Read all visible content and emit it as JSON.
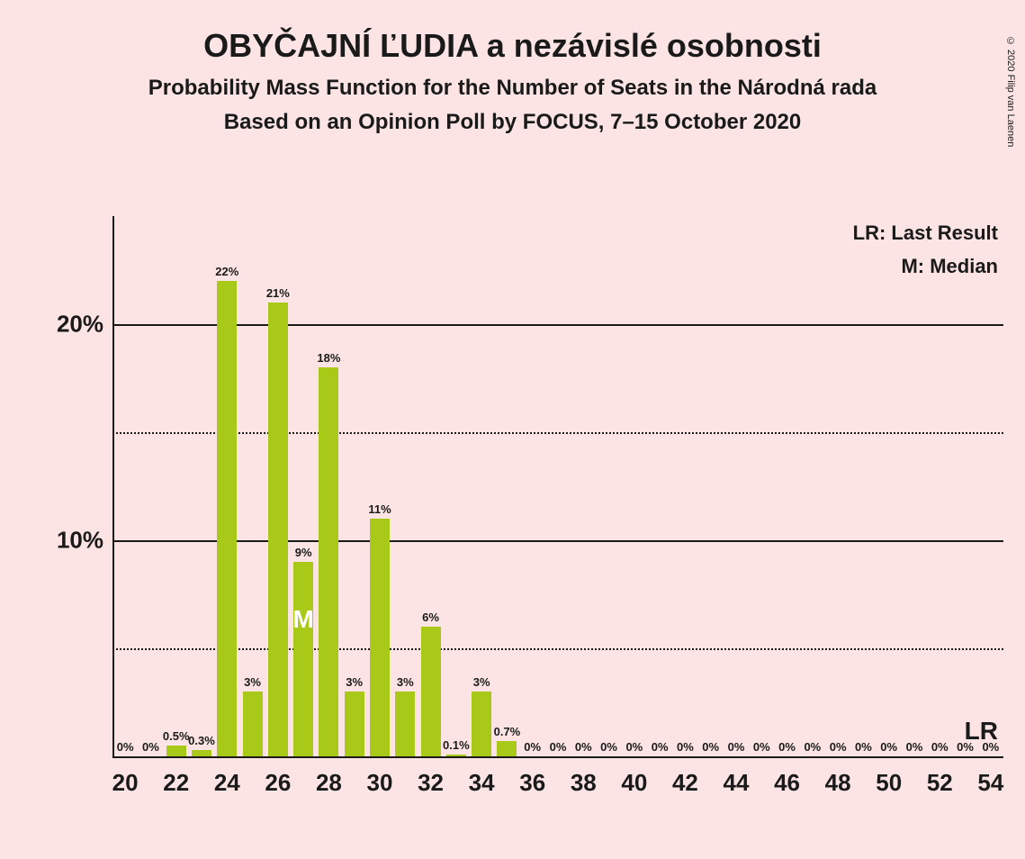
{
  "title": "OBYČAJNÍ ĽUDIA a nezávislé osobnosti",
  "subtitle1": "Probability Mass Function for the Number of Seats in the Národná rada",
  "subtitle2": "Based on an Opinion Poll by FOCUS, 7–15 October 2020",
  "copyright": "© 2020 Filip van Laenen",
  "legend": {
    "lr": "LR: Last Result",
    "m": "M: Median"
  },
  "chart": {
    "type": "bar",
    "background_color": "#fce4e4",
    "bar_color": "#a9c918",
    "axis_color": "#1a1a1a",
    "grid_color": "#1a1a1a",
    "text_color": "#1a1a1a",
    "ylim": [
      0,
      25
    ],
    "y_major_ticks": [
      10,
      20
    ],
    "y_minor_ticks": [
      5,
      15
    ],
    "y_tick_labels": {
      "10": "10%",
      "20": "20%"
    },
    "x_start": 20,
    "x_end": 54,
    "x_tick_step": 2,
    "bar_width_ratio": 0.78,
    "bars": [
      {
        "x": 20,
        "value": 0,
        "label": "0%"
      },
      {
        "x": 21,
        "value": 0,
        "label": "0%"
      },
      {
        "x": 22,
        "value": 0.5,
        "label": "0.5%"
      },
      {
        "x": 23,
        "value": 0.3,
        "label": "0.3%"
      },
      {
        "x": 24,
        "value": 22,
        "label": "22%"
      },
      {
        "x": 25,
        "value": 3,
        "label": "3%"
      },
      {
        "x": 26,
        "value": 21,
        "label": "21%"
      },
      {
        "x": 27,
        "value": 9,
        "label": "9%"
      },
      {
        "x": 28,
        "value": 18,
        "label": "18%"
      },
      {
        "x": 29,
        "value": 3,
        "label": "3%"
      },
      {
        "x": 30,
        "value": 11,
        "label": "11%"
      },
      {
        "x": 31,
        "value": 3,
        "label": "3%"
      },
      {
        "x": 32,
        "value": 6,
        "label": "6%"
      },
      {
        "x": 33,
        "value": 0.1,
        "label": "0.1%"
      },
      {
        "x": 34,
        "value": 3,
        "label": "3%"
      },
      {
        "x": 35,
        "value": 0.7,
        "label": "0.7%"
      },
      {
        "x": 36,
        "value": 0,
        "label": "0%"
      },
      {
        "x": 37,
        "value": 0,
        "label": "0%"
      },
      {
        "x": 38,
        "value": 0,
        "label": "0%"
      },
      {
        "x": 39,
        "value": 0,
        "label": "0%"
      },
      {
        "x": 40,
        "value": 0,
        "label": "0%"
      },
      {
        "x": 41,
        "value": 0,
        "label": "0%"
      },
      {
        "x": 42,
        "value": 0,
        "label": "0%"
      },
      {
        "x": 43,
        "value": 0,
        "label": "0%"
      },
      {
        "x": 44,
        "value": 0,
        "label": "0%"
      },
      {
        "x": 45,
        "value": 0,
        "label": "0%"
      },
      {
        "x": 46,
        "value": 0,
        "label": "0%"
      },
      {
        "x": 47,
        "value": 0,
        "label": "0%"
      },
      {
        "x": 48,
        "value": 0,
        "label": "0%"
      },
      {
        "x": 49,
        "value": 0,
        "label": "0%"
      },
      {
        "x": 50,
        "value": 0,
        "label": "0%"
      },
      {
        "x": 51,
        "value": 0,
        "label": "0%"
      },
      {
        "x": 52,
        "value": 0,
        "label": "0%"
      },
      {
        "x": 53,
        "value": 0,
        "label": "0%"
      },
      {
        "x": 54,
        "value": 0,
        "label": "0%"
      }
    ],
    "median_x": 27,
    "median_label": "M",
    "lr_label": "LR",
    "title_fontsize": 36,
    "subtitle_fontsize": 24,
    "axis_label_fontsize": 26,
    "bar_label_fontsize": 13
  }
}
